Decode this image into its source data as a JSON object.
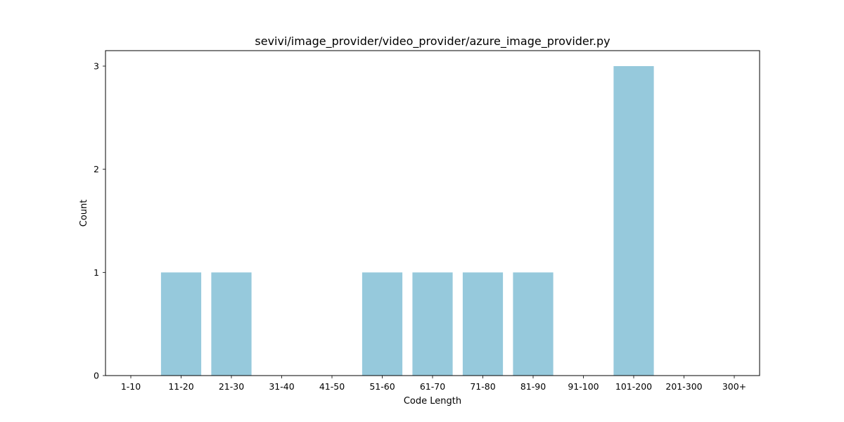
{
  "chart_data": {
    "type": "bar",
    "title": "sevivi/image_provider/video_provider/azure_image_provider.py",
    "xlabel": "Code Length",
    "ylabel": "Count",
    "categories": [
      "1-10",
      "11-20",
      "21-30",
      "31-40",
      "41-50",
      "51-60",
      "61-70",
      "71-80",
      "81-90",
      "91-100",
      "101-200",
      "201-300",
      "300+"
    ],
    "values": [
      0,
      1,
      1,
      0,
      0,
      1,
      1,
      1,
      1,
      0,
      3,
      0,
      0
    ],
    "ylim": [
      0,
      3.15
    ],
    "yticks": [
      0,
      1,
      2,
      3
    ],
    "grid": false,
    "bar_color": "#96c9dc"
  }
}
